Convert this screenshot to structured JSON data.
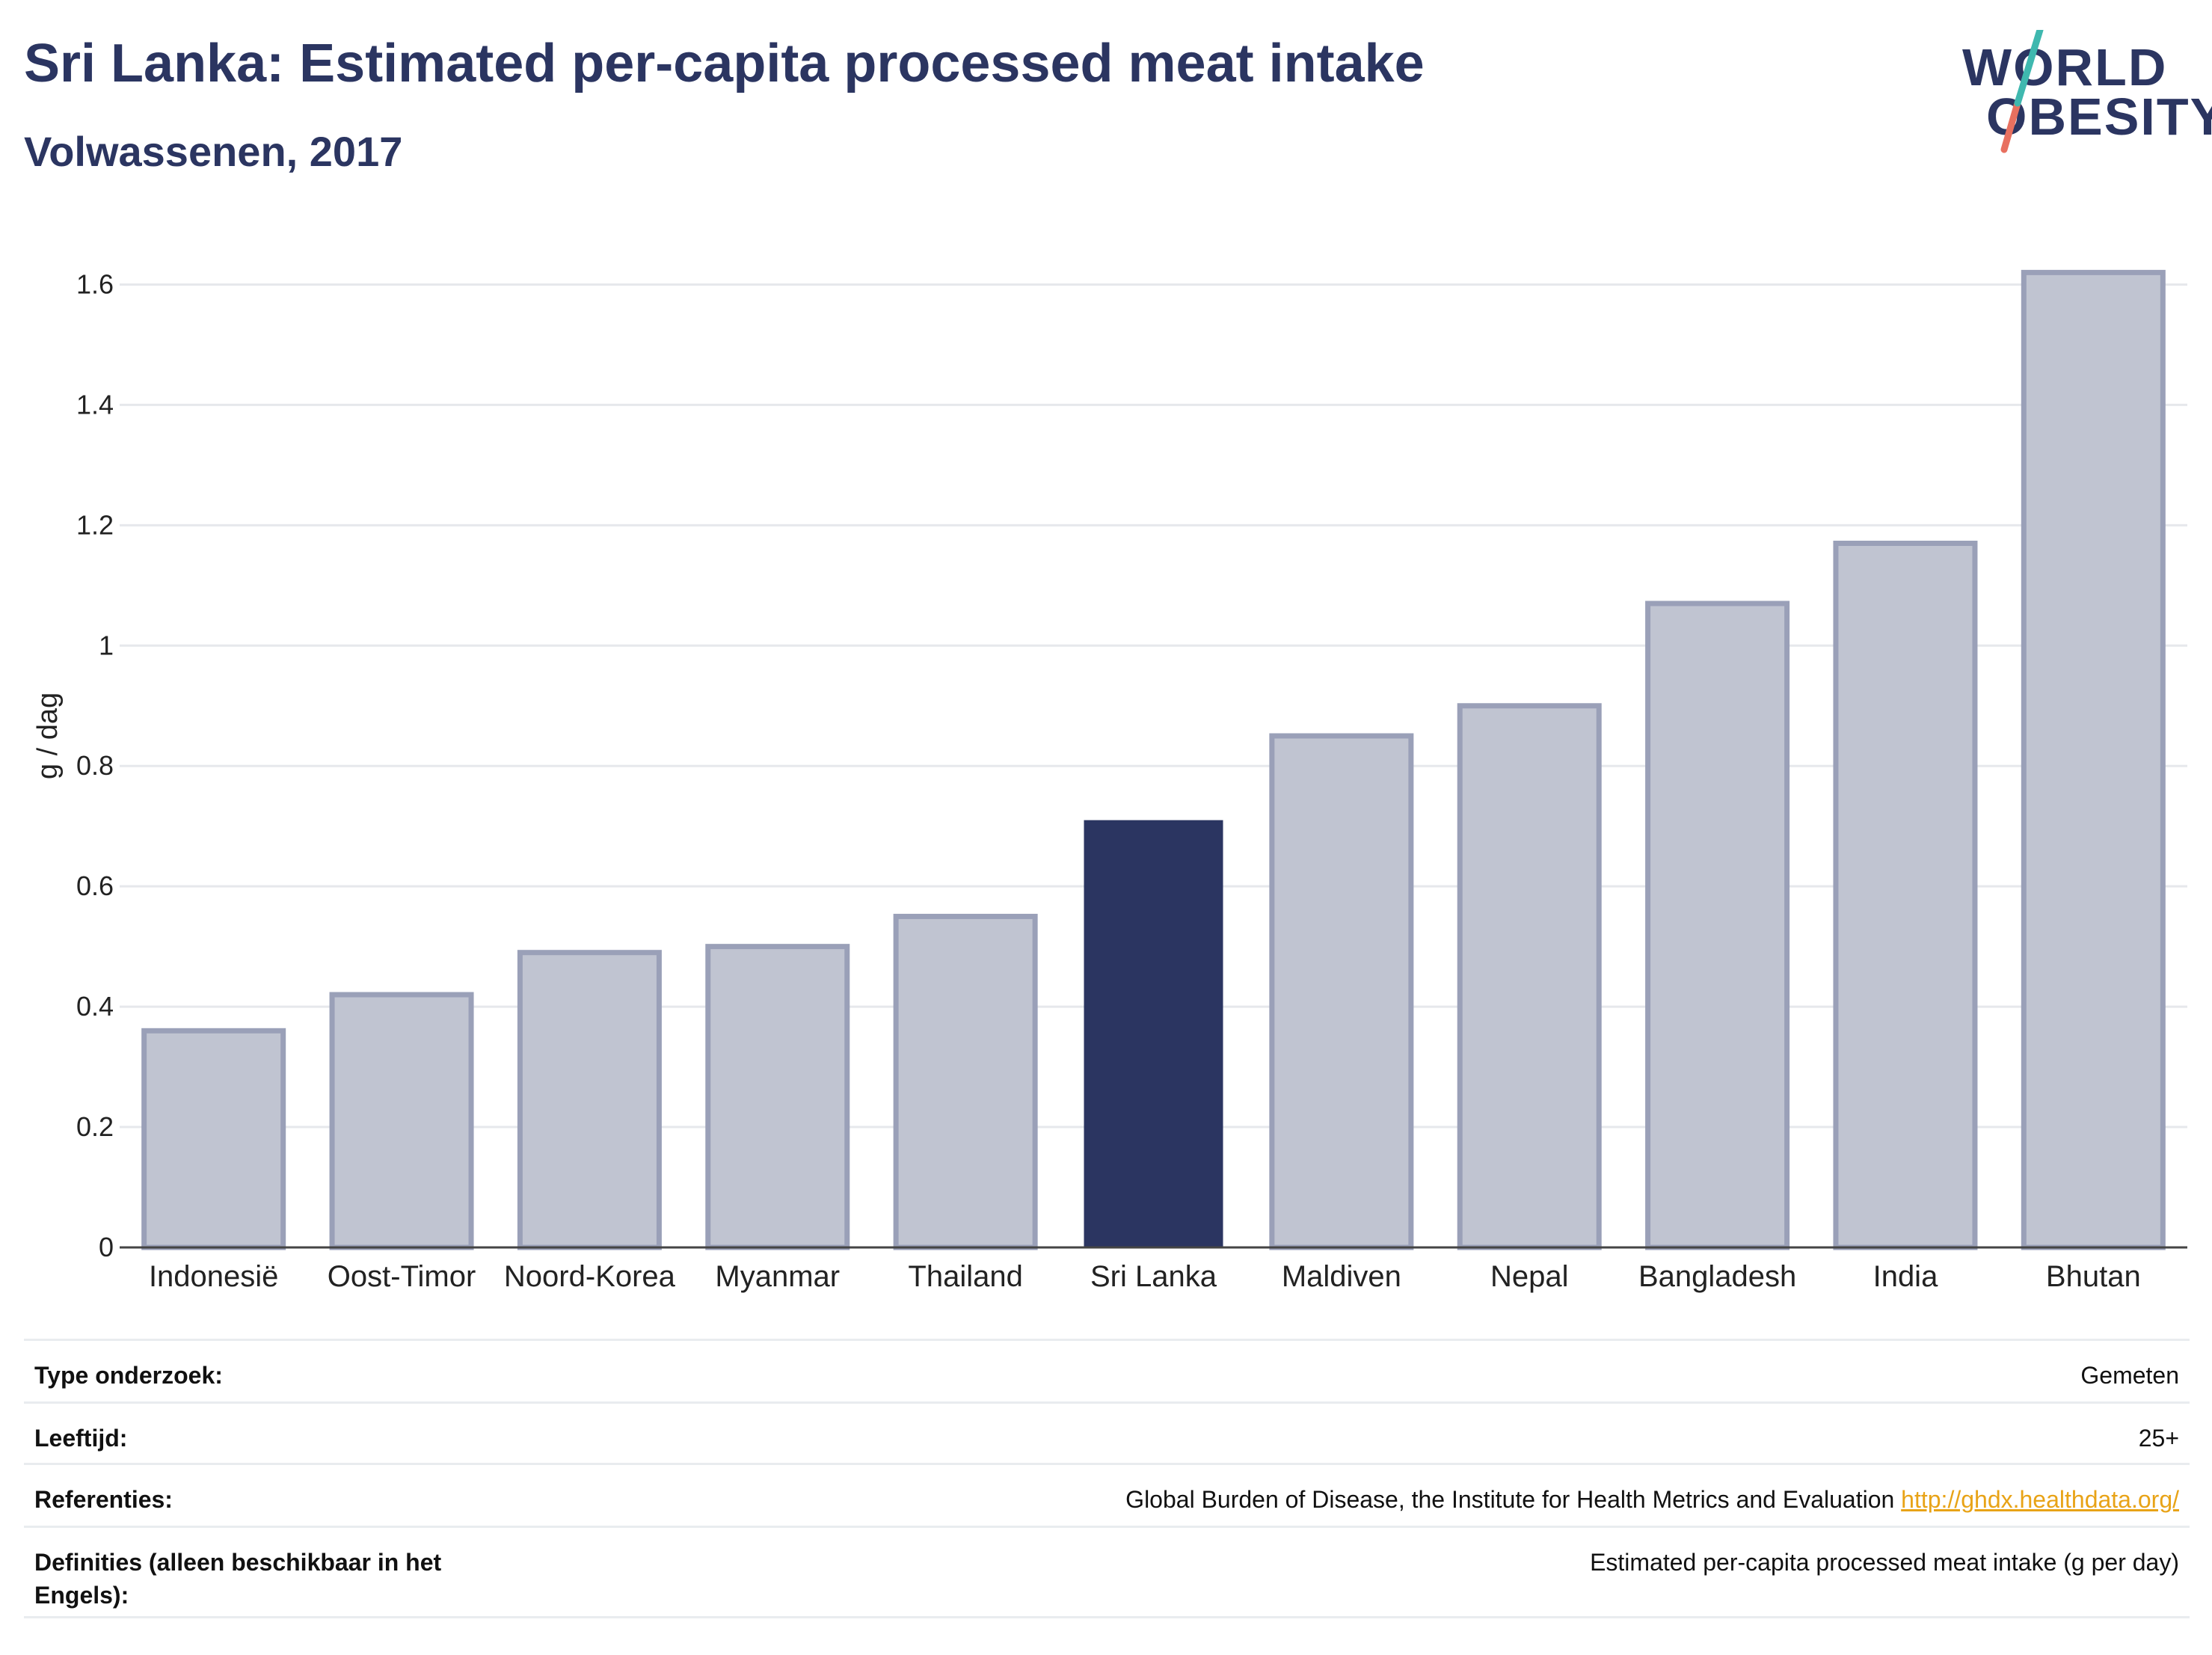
{
  "header": {
    "title": "Sri Lanka: Estimated per-capita processed meat intake",
    "subtitle": "Volwassenen, 2017"
  },
  "logo": {
    "line1": "WORLD",
    "line2": "OBESITY",
    "colors": {
      "teal": "#3fb8af",
      "coral": "#e8705f"
    }
  },
  "chart_data": {
    "type": "bar",
    "categories": [
      "Indonesië",
      "Oost-Timor",
      "Noord-Korea",
      "Myanmar",
      "Thailand",
      "Sri Lanka",
      "Maldiven",
      "Nepal",
      "Bangladesh",
      "India",
      "Bhutan"
    ],
    "values": [
      0.36,
      0.42,
      0.49,
      0.5,
      0.55,
      0.71,
      0.85,
      0.9,
      1.07,
      1.17,
      1.62
    ],
    "highlight": "Sri Lanka",
    "ylabel": "g / dag",
    "ylim": [
      0,
      1.7
    ],
    "yticks": [
      0,
      0.2,
      0.4,
      0.6,
      0.8,
      1,
      1.2,
      1.4,
      1.6
    ],
    "ytick_labels": [
      "0",
      "0.2",
      "0.4",
      "0.6",
      "0.8",
      "1",
      "1.2",
      "1.4",
      "1.6"
    ],
    "grid": true,
    "colors": {
      "bar": "#c0c4d1",
      "bar_border": "#9aa0b8",
      "highlight": "#2b3561"
    }
  },
  "info": {
    "rows": [
      {
        "label": "Type onderzoek:",
        "value": "Gemeten"
      },
      {
        "label": "Leeftijd:",
        "value": "25+"
      },
      {
        "label": "Referenties:",
        "value": "Global Burden of Disease, the Institute for Health Metrics and Evaluation",
        "link": "http://ghdx.healthdata.org/"
      },
      {
        "label": "Definities (alleen beschikbaar in het Engels):",
        "value": "Estimated per-capita processed meat intake (g per day)"
      }
    ]
  }
}
